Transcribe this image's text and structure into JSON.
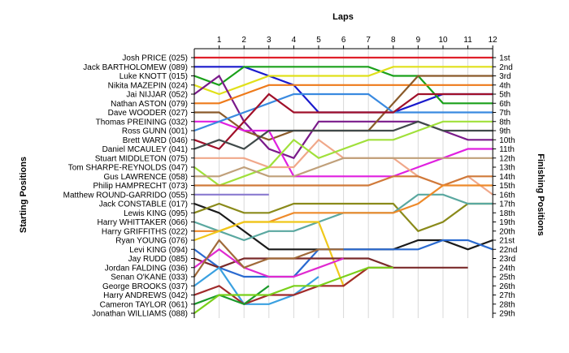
{
  "chart_data": {
    "type": "line",
    "title": "",
    "xlabel": "Laps",
    "ylabel_left": "Starting Positions",
    "ylabel_right": "Finishing Positions",
    "laps": [
      1,
      2,
      3,
      4,
      5,
      6,
      7,
      8,
      9,
      10,
      11,
      12
    ],
    "starting_order": [
      "Josh PRICE (025)",
      "Jack BARTHOLOMEW (089)",
      "Luke KNOTT (015)",
      "Nikita MAZEPIN (024)",
      "Jai NIJJAR (052)",
      "Nathan ASTON (079)",
      "Dave WOODER (027)",
      "Thomas PREINING (032)",
      "Ross GUNN (001)",
      "Brett WARD (046)",
      "Daniel MCAULEY (041)",
      "Stuart MIDDLETON (075)",
      "Tom SHARPE-REYNOLDS (047)",
      "Gus LAWRENCE (058)",
      "Philip HAMPRECHT (073)",
      "Matthew ROUND-GARRIDO (055)",
      "Jack CONSTABLE (017)",
      "Lewis KING (095)",
      "Harry WHITTAKER (066)",
      "Harry GRIFFITHS (022)",
      "Ryan YOUNG (076)",
      "Levi KING (094)",
      "Jay RUDD (085)",
      "Jordan FALDING (036)",
      "Senan O'KANE (033)",
      "George BROOKS (037)",
      "Harry ANDREWS (042)",
      "Cameron TAYLOR (061)",
      "Jonathan WILLIAMS (088)"
    ],
    "finishing_labels": [
      "1st",
      "2nd",
      "3rd",
      "4th",
      "5th",
      "6th",
      "7th",
      "8th",
      "9th",
      "10th",
      "11th",
      "12th",
      "13th",
      "14th",
      "15th",
      "16th",
      "17th",
      "18th",
      "19th",
      "20th",
      "21st",
      "22nd",
      "23rd",
      "24th",
      "25th",
      "26th",
      "27th",
      "28th",
      "29th"
    ],
    "series": [
      {
        "color": "#e0202a",
        "positions": [
          1,
          1,
          1,
          1,
          1,
          1,
          1,
          1,
          1,
          1,
          1,
          1,
          1
        ]
      },
      {
        "color": "#1a1acc",
        "positions": [
          2,
          2,
          2,
          3,
          4,
          7,
          7,
          7,
          7,
          6,
          5,
          5,
          5
        ]
      },
      {
        "color": "#1aa01a",
        "positions": [
          3,
          4,
          2,
          2,
          2,
          2,
          2,
          2,
          3,
          3,
          6,
          6,
          6
        ]
      },
      {
        "color": "#e0e01a",
        "positions": [
          4,
          5,
          4,
          3,
          3,
          3,
          3,
          3,
          2,
          2,
          2,
          2,
          2
        ]
      },
      {
        "color": "#7a1a8a",
        "positions": [
          5,
          3,
          8,
          11,
          12,
          8,
          8,
          8,
          8,
          8,
          9,
          10,
          10
        ]
      },
      {
        "color": "#ee7a1a",
        "positions": [
          6,
          6,
          5,
          4,
          4,
          4,
          4,
          4,
          4,
          4,
          4,
          4,
          4
        ]
      },
      {
        "color": "#8a5a2a",
        "positions": [
          7,
          7,
          9,
          10,
          9,
          9,
          9,
          9,
          6,
          3,
          3,
          3,
          3
        ]
      },
      {
        "color": "#e020e0",
        "positions": [
          8,
          8,
          9,
          9,
          14,
          14,
          14,
          14,
          14,
          13,
          12,
          11,
          11
        ]
      },
      {
        "color": "#3a8ae0",
        "positions": [
          9,
          8,
          7,
          6,
          5,
          5,
          5,
          5,
          7,
          7,
          7,
          7,
          7
        ]
      },
      {
        "color": "#a0102a",
        "positions": [
          10,
          11,
          8,
          5,
          7,
          7,
          7,
          7,
          7,
          5,
          5,
          5,
          5
        ]
      },
      {
        "color": "#404a4a",
        "positions": [
          11,
          10,
          11,
          9,
          9,
          9,
          9,
          9,
          9,
          8,
          9,
          9,
          9
        ]
      },
      {
        "color": "#f0a88a",
        "positions": [
          12,
          12,
          12,
          13,
          13,
          10,
          12,
          12,
          12,
          14,
          15,
          14,
          16
        ]
      },
      {
        "color": "#a0e03a",
        "positions": [
          13,
          15,
          14,
          13,
          10,
          12,
          11,
          10,
          10,
          9,
          8,
          8,
          8
        ]
      },
      {
        "color": "#c0a07a",
        "positions": [
          14,
          14,
          13,
          14,
          14,
          13,
          12,
          12,
          12,
          12,
          12,
          12,
          12
        ]
      },
      {
        "color": "#d07a3a",
        "positions": [
          15,
          15,
          15,
          15,
          15,
          15,
          15,
          15,
          14,
          14,
          15,
          14,
          14
        ]
      },
      {
        "color": "#8a7ad0",
        "positions": [
          16,
          16,
          16,
          16
        ]
      },
      {
        "color": "#1a1a1a",
        "positions": [
          17,
          18,
          20,
          22,
          22,
          22,
          22,
          22,
          22,
          21,
          21,
          22,
          21
        ]
      },
      {
        "color": "#8a8a1a",
        "positions": [
          18,
          17,
          18,
          18,
          17,
          17,
          17,
          17,
          17,
          20,
          19,
          17,
          17
        ]
      },
      {
        "color": "#5aa8a0",
        "positions": [
          19,
          20,
          21,
          20,
          20,
          19,
          18,
          18,
          18,
          16,
          16,
          17,
          17
        ]
      },
      {
        "color": "#ee8a2a",
        "positions": [
          20,
          20,
          19,
          19,
          18,
          18,
          18,
          18,
          18,
          17,
          15,
          15,
          15
        ]
      },
      {
        "color": "#f0c81a",
        "positions": [
          21,
          20,
          19,
          19,
          19,
          19,
          26,
          24
        ]
      },
      {
        "color": "#2a6ad0",
        "positions": [
          22,
          24,
          25,
          25,
          25,
          22,
          22,
          22,
          22,
          22,
          21,
          21,
          22
        ]
      },
      {
        "color": "#7a2a2a",
        "positions": [
          23,
          24,
          23,
          23,
          23,
          23,
          23,
          23,
          24,
          24,
          24,
          24
        ]
      },
      {
        "color": "#e02ad0",
        "positions": [
          24,
          22,
          24,
          25,
          25,
          24,
          23
        ]
      },
      {
        "color": "#a06a3a",
        "positions": [
          25,
          21,
          24,
          23,
          23,
          22,
          22
        ]
      },
      {
        "color": "#3aa0e0",
        "positions": [
          26,
          24,
          28,
          28,
          27,
          25
        ]
      },
      {
        "color": "#a02a2a",
        "positions": [
          27,
          26,
          28,
          27,
          27,
          26,
          26,
          24,
          24
        ]
      },
      {
        "color": "#1a9a2a",
        "positions": [
          28,
          27,
          28,
          26
        ]
      },
      {
        "color": "#7ad01a",
        "positions": [
          29,
          27,
          27,
          27,
          26,
          26,
          25,
          24,
          24
        ]
      }
    ]
  }
}
